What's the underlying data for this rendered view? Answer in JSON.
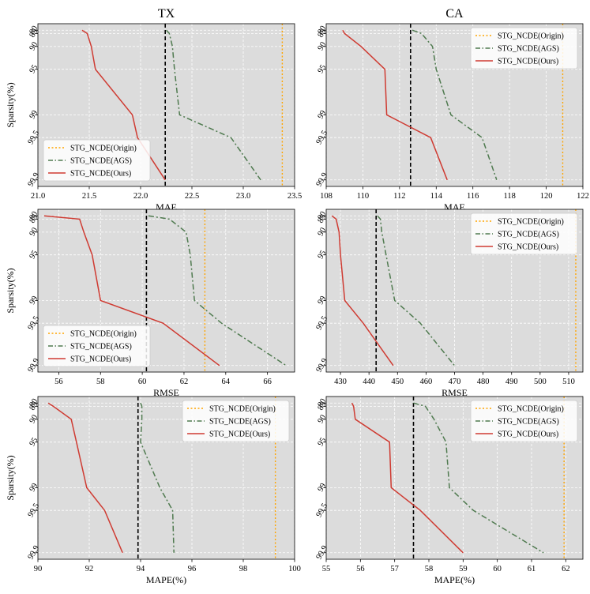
{
  "colors": {
    "background": "#dcdcdc",
    "grid": "#ffffff",
    "origin": "#ffa500",
    "ags": "#4f7a4f",
    "ours": "#cf3b32",
    "reference": "#000000"
  },
  "chart_data": [
    {
      "type": "line",
      "panel": "TX-MAE",
      "title": "TX",
      "xlabel": "MAE",
      "ylabel": "Sparsity(%)",
      "xlim": [
        21.0,
        23.5
      ],
      "xticks": [
        21.0,
        21.5,
        22.0,
        22.5,
        23.0,
        23.5
      ],
      "xtick_labels": [
        "21.0",
        "21.5",
        "22.0",
        "22.5",
        "23.0",
        "23.5"
      ],
      "y_categories": [
        "80",
        "85",
        "90",
        "95",
        "99",
        "99.5",
        "99.9"
      ],
      "legend_position": "lower-left",
      "origin_value": 23.38,
      "reference_value": 22.24,
      "series": [
        {
          "name": "STG_NCDE(Origin)",
          "style": "dotted",
          "values": null
        },
        {
          "name": "STG_NCDE(AGS)",
          "style": "dashdot",
          "values": [
            22.25,
            22.28,
            22.31,
            22.33,
            22.38,
            22.88,
            23.17
          ]
        },
        {
          "name": "STG_NCDE(Ours)",
          "style": "solid",
          "values": [
            21.43,
            21.48,
            21.52,
            21.56,
            21.92,
            21.97,
            22.24
          ]
        }
      ]
    },
    {
      "type": "line",
      "panel": "CA-MAE",
      "title": "CA",
      "xlabel": "MAE",
      "ylabel": "",
      "xlim": [
        108,
        122
      ],
      "xticks": [
        108,
        110,
        112,
        114,
        116,
        118,
        120,
        122
      ],
      "xtick_labels": [
        "108",
        "110",
        "112",
        "114",
        "116",
        "118",
        "120",
        "122"
      ],
      "y_categories": [
        "80",
        "85",
        "90",
        "95",
        "99",
        "99.5",
        "99.9"
      ],
      "legend_position": "top-right",
      "origin_value": 120.9,
      "reference_value": 112.6,
      "series": [
        {
          "name": "STG_NCDE(Origin)",
          "style": "dotted",
          "values": null
        },
        {
          "name": "STG_NCDE(AGS)",
          "style": "dashdot",
          "values": [
            112.7,
            113.2,
            113.8,
            114.0,
            114.8,
            116.5,
            117.3
          ]
        },
        {
          "name": "STG_NCDE(Ours)",
          "style": "solid",
          "values": [
            108.9,
            109.0,
            109.9,
            111.2,
            111.3,
            113.7,
            114.6
          ]
        }
      ]
    },
    {
      "type": "line",
      "panel": "TX-RMSE",
      "title": "",
      "xlabel": "RMSE",
      "ylabel": "Sparsity(%)",
      "xlim": [
        55,
        67.3
      ],
      "xticks": [
        56,
        58,
        60,
        62,
        64,
        66
      ],
      "xtick_labels": [
        "56",
        "58",
        "60",
        "62",
        "64",
        "66"
      ],
      "y_categories": [
        "80",
        "85",
        "90",
        "95",
        "99",
        "99.5",
        "99.9"
      ],
      "legend_position": "lower-left",
      "origin_value": 63.0,
      "reference_value": 60.2,
      "series": [
        {
          "name": "STG_NCDE(Origin)",
          "style": "dotted",
          "values": null
        },
        {
          "name": "STG_NCDE(AGS)",
          "style": "dashdot",
          "values": [
            60.3,
            61.3,
            62.1,
            62.3,
            62.5,
            63.8,
            66.9
          ]
        },
        {
          "name": "STG_NCDE(Ours)",
          "style": "solid",
          "values": [
            55.3,
            57.0,
            57.2,
            57.6,
            58.0,
            61.0,
            63.7
          ]
        }
      ]
    },
    {
      "type": "line",
      "panel": "CA-RMSE",
      "title": "",
      "xlabel": "RMSE",
      "ylabel": "",
      "xlim": [
        425,
        515
      ],
      "xticks": [
        430,
        440,
        450,
        460,
        470,
        480,
        490,
        500,
        510
      ],
      "xtick_labels": [
        "430",
        "440",
        "450",
        "460",
        "470",
        "480",
        "490",
        "500",
        "510"
      ],
      "y_categories": [
        "80",
        "85",
        "90",
        "95",
        "99",
        "99.5",
        "99.9"
      ],
      "legend_position": "top-right",
      "origin_value": 512.5,
      "reference_value": 442.5,
      "series": [
        {
          "name": "STG_NCDE(Origin)",
          "style": "dotted",
          "values": null
        },
        {
          "name": "STG_NCDE(AGS)",
          "style": "dashdot",
          "values": [
            443.0,
            444.0,
            444.5,
            446.0,
            449.0,
            458.0,
            470.0
          ]
        },
        {
          "name": "STG_NCDE(Ours)",
          "style": "solid",
          "values": [
            427.0,
            428.5,
            429.5,
            430.0,
            431.5,
            438.0,
            448.5
          ]
        }
      ]
    },
    {
      "type": "line",
      "panel": "TX-MAPE",
      "title": "",
      "xlabel": "MAPE(%)",
      "ylabel": "Sparsity(%)",
      "xlim": [
        90,
        100
      ],
      "xticks": [
        90,
        92,
        94,
        96,
        98,
        100
      ],
      "xtick_labels": [
        "90",
        "92",
        "94",
        "96",
        "98",
        "100"
      ],
      "y_categories": [
        "80",
        "85",
        "90",
        "95",
        "99",
        "99.5",
        "99.9"
      ],
      "legend_position": "top-right",
      "origin_value": 99.25,
      "reference_value": 93.9,
      "series": [
        {
          "name": "STG_NCDE(Origin)",
          "style": "dotted",
          "values": null
        },
        {
          "name": "STG_NCDE(AGS)",
          "style": "dashdot",
          "values": [
            94.0,
            94.05,
            94.05,
            94.0,
            94.75,
            95.25,
            95.3
          ]
        },
        {
          "name": "STG_NCDE(Ours)",
          "style": "solid",
          "values": [
            90.4,
            90.6,
            91.3,
            91.5,
            91.9,
            92.6,
            93.3
          ]
        }
      ]
    },
    {
      "type": "line",
      "panel": "CA-MAPE",
      "title": "",
      "xlabel": "MAPE(%)",
      "ylabel": "",
      "xlim": [
        55,
        62.5
      ],
      "xticks": [
        55,
        56,
        57,
        58,
        59,
        60,
        61,
        62
      ],
      "xtick_labels": [
        "55",
        "56",
        "57",
        "58",
        "59",
        "60",
        "61",
        "62"
      ],
      "y_categories": [
        "80",
        "85",
        "90",
        "95",
        "99",
        "99.5",
        "99.9"
      ],
      "legend_position": "top-right",
      "origin_value": 61.95,
      "reference_value": 57.55,
      "series": [
        {
          "name": "STG_NCDE(Origin)",
          "style": "dotted",
          "values": null
        },
        {
          "name": "STG_NCDE(AGS)",
          "style": "dashdot",
          "values": [
            57.55,
            57.9,
            58.15,
            58.5,
            58.6,
            59.3,
            61.35
          ]
        },
        {
          "name": "STG_NCDE(Ours)",
          "style": "solid",
          "values": [
            55.75,
            55.8,
            55.85,
            56.85,
            56.9,
            57.75,
            59.0
          ]
        }
      ]
    }
  ]
}
